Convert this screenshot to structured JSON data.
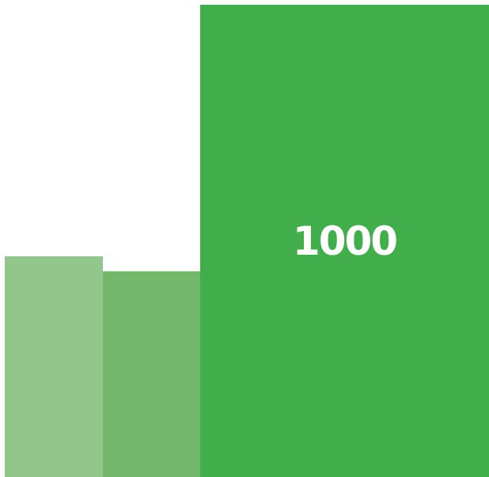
{
  "blocks": [
    {
      "name": "block-left",
      "color": "#93c68c",
      "label": ""
    },
    {
      "name": "block-middle",
      "color": "#72b76a",
      "label": ""
    },
    {
      "name": "block-right",
      "color": "#42ad4b",
      "label": "1000"
    }
  ]
}
